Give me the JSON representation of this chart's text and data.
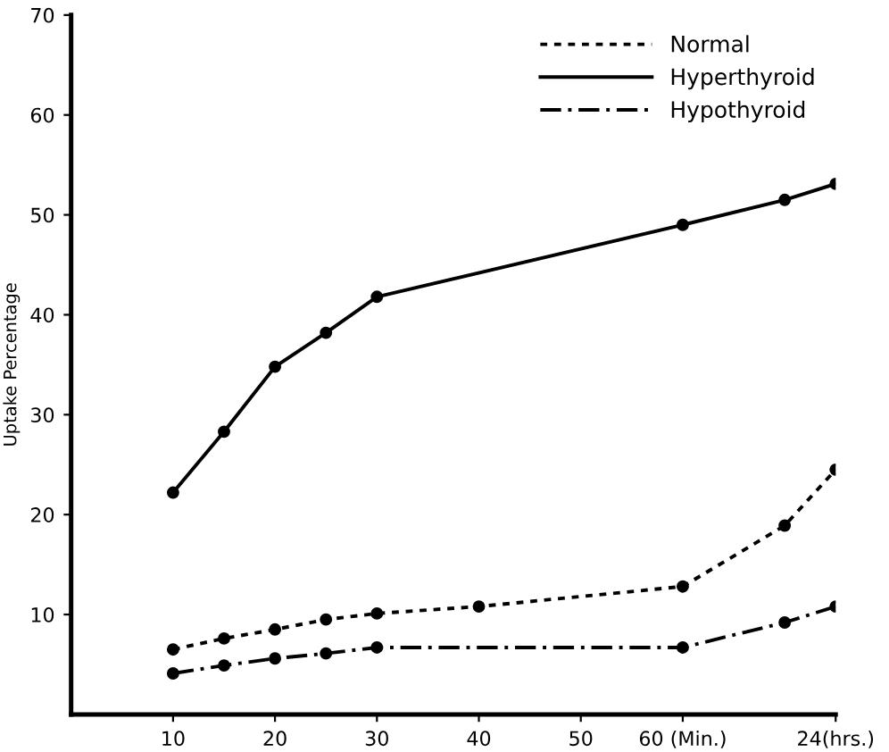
{
  "chart_data": {
    "type": "line",
    "ylabel": "Uptake Percentage",
    "ylim": [
      0,
      70
    ],
    "categories": [
      "10",
      null,
      "20",
      null,
      "30",
      null,
      "40",
      null,
      "50",
      null,
      "60 (Min.)",
      null,
      null,
      "24(hrs.)"
    ],
    "yticks": [
      10,
      20,
      30,
      40,
      50,
      60,
      70
    ],
    "grid": false,
    "legend": "top right",
    "marker": "circle",
    "series": [
      {
        "name": "Normal",
        "color": "#000000",
        "line_style": "dotted",
        "values": [
          6.5,
          7.6,
          8.5,
          9.5,
          10.1,
          null,
          10.8,
          null,
          null,
          null,
          12.8,
          null,
          18.9,
          24.5
        ]
      },
      {
        "name": "Hyperthyroid",
        "color": "#000000",
        "line_style": "solid",
        "values": [
          22.2,
          28.3,
          34.8,
          38.2,
          41.8,
          null,
          null,
          null,
          null,
          null,
          49.0,
          null,
          51.5,
          53.1
        ]
      },
      {
        "name": "Hypothyroid",
        "color": "#000000",
        "line_style": "dashdot",
        "values": [
          4.1,
          4.9,
          5.6,
          6.1,
          6.7,
          null,
          null,
          null,
          null,
          null,
          6.7,
          null,
          9.2,
          10.8
        ]
      }
    ]
  }
}
